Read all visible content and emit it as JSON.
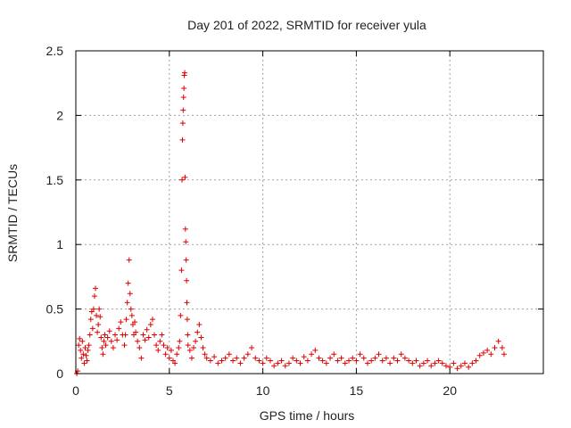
{
  "chart_data": {
    "type": "scatter",
    "title": "Day 201 of 2022, SRMTID for receiver yula",
    "xlabel": "GPS time / hours",
    "ylabel": "SRMTID / TECUs",
    "xlim": [
      0,
      25
    ],
    "ylim": [
      0,
      2.5
    ],
    "x_ticks": [
      0,
      5,
      10,
      15,
      20
    ],
    "x_tick_labels": [
      "0",
      "5",
      "10",
      "15",
      "20"
    ],
    "y_ticks": [
      0,
      0.5,
      1,
      1.5,
      2,
      2.5
    ],
    "y_tick_labels": [
      "0",
      "0.5",
      "1",
      "1.5",
      "2",
      "2.5"
    ],
    "grid": true,
    "marker": "+",
    "series": [
      {
        "name": "SRMTID",
        "color": "#e00000",
        "points": [
          [
            0.05,
            0.0
          ],
          [
            0.1,
            0.02
          ],
          [
            0.15,
            0.22
          ],
          [
            0.2,
            0.27
          ],
          [
            0.25,
            0.18
          ],
          [
            0.3,
            0.12
          ],
          [
            0.35,
            0.25
          ],
          [
            0.4,
            0.15
          ],
          [
            0.45,
            0.08
          ],
          [
            0.5,
            0.2
          ],
          [
            0.55,
            0.14
          ],
          [
            0.6,
            0.1
          ],
          [
            0.65,
            0.18
          ],
          [
            0.7,
            0.22
          ],
          [
            0.75,
            0.3
          ],
          [
            0.8,
            0.42
          ],
          [
            0.85,
            0.48
          ],
          [
            0.9,
            0.35
          ],
          [
            0.95,
            0.5
          ],
          [
            1.0,
            0.6
          ],
          [
            1.05,
            0.66
          ],
          [
            1.1,
            0.45
          ],
          [
            1.15,
            0.32
          ],
          [
            1.2,
            0.38
          ],
          [
            1.25,
            0.5
          ],
          [
            1.3,
            0.44
          ],
          [
            1.35,
            0.28
          ],
          [
            1.4,
            0.2
          ],
          [
            1.45,
            0.15
          ],
          [
            1.5,
            0.25
          ],
          [
            1.55,
            0.3
          ],
          [
            1.6,
            0.22
          ],
          [
            1.7,
            0.28
          ],
          [
            1.8,
            0.33
          ],
          [
            1.9,
            0.25
          ],
          [
            2.0,
            0.2
          ],
          [
            2.1,
            0.3
          ],
          [
            2.2,
            0.26
          ],
          [
            2.3,
            0.35
          ],
          [
            2.4,
            0.4
          ],
          [
            2.5,
            0.3
          ],
          [
            2.6,
            0.22
          ],
          [
            2.65,
            0.3
          ],
          [
            2.7,
            0.42
          ],
          [
            2.75,
            0.55
          ],
          [
            2.8,
            0.7
          ],
          [
            2.85,
            0.88
          ],
          [
            2.9,
            0.62
          ],
          [
            2.95,
            0.5
          ],
          [
            3.0,
            0.45
          ],
          [
            3.05,
            0.38
          ],
          [
            3.1,
            0.3
          ],
          [
            3.15,
            0.4
          ],
          [
            3.2,
            0.32
          ],
          [
            3.3,
            0.25
          ],
          [
            3.4,
            0.2
          ],
          [
            3.5,
            0.12
          ],
          [
            3.6,
            0.3
          ],
          [
            3.7,
            0.26
          ],
          [
            3.8,
            0.34
          ],
          [
            3.9,
            0.28
          ],
          [
            4.0,
            0.38
          ],
          [
            4.1,
            0.42
          ],
          [
            4.2,
            0.3
          ],
          [
            4.3,
            0.22
          ],
          [
            4.4,
            0.18
          ],
          [
            4.5,
            0.25
          ],
          [
            4.6,
            0.3
          ],
          [
            4.7,
            0.22
          ],
          [
            4.8,
            0.15
          ],
          [
            4.9,
            0.2
          ],
          [
            5.0,
            0.12
          ],
          [
            5.1,
            0.18
          ],
          [
            5.2,
            0.1
          ],
          [
            5.3,
            0.08
          ],
          [
            5.4,
            0.15
          ],
          [
            5.5,
            0.2
          ],
          [
            5.55,
            0.25
          ],
          [
            5.6,
            0.45
          ],
          [
            5.65,
            0.8
          ],
          [
            5.68,
            1.5
          ],
          [
            5.7,
            1.81
          ],
          [
            5.72,
            1.94
          ],
          [
            5.74,
            2.04
          ],
          [
            5.76,
            2.14
          ],
          [
            5.78,
            2.21
          ],
          [
            5.8,
            2.31
          ],
          [
            5.82,
            2.33
          ],
          [
            5.84,
            1.52
          ],
          [
            5.86,
            1.12
          ],
          [
            5.88,
            1.02
          ],
          [
            5.9,
            0.88
          ],
          [
            5.92,
            0.72
          ],
          [
            5.94,
            0.55
          ],
          [
            5.96,
            0.42
          ],
          [
            5.98,
            0.3
          ],
          [
            6.0,
            0.22
          ],
          [
            6.1,
            0.18
          ],
          [
            6.2,
            0.12
          ],
          [
            6.3,
            0.2
          ],
          [
            6.4,
            0.25
          ],
          [
            6.5,
            0.32
          ],
          [
            6.6,
            0.38
          ],
          [
            6.7,
            0.28
          ],
          [
            6.8,
            0.2
          ],
          [
            6.9,
            0.15
          ],
          [
            7.0,
            0.12
          ],
          [
            7.2,
            0.1
          ],
          [
            7.4,
            0.13
          ],
          [
            7.6,
            0.08
          ],
          [
            7.8,
            0.1
          ],
          [
            8.0,
            0.12
          ],
          [
            8.2,
            0.15
          ],
          [
            8.4,
            0.1
          ],
          [
            8.6,
            0.12
          ],
          [
            8.8,
            0.08
          ],
          [
            9.0,
            0.12
          ],
          [
            9.2,
            0.15
          ],
          [
            9.4,
            0.2
          ],
          [
            9.6,
            0.12
          ],
          [
            9.8,
            0.1
          ],
          [
            10.0,
            0.08
          ],
          [
            10.2,
            0.12
          ],
          [
            10.4,
            0.1
          ],
          [
            10.6,
            0.06
          ],
          [
            10.8,
            0.08
          ],
          [
            11.0,
            0.1
          ],
          [
            11.2,
            0.06
          ],
          [
            11.4,
            0.08
          ],
          [
            11.6,
            0.12
          ],
          [
            11.8,
            0.1
          ],
          [
            12.0,
            0.08
          ],
          [
            12.2,
            0.13
          ],
          [
            12.4,
            0.1
          ],
          [
            12.6,
            0.15
          ],
          [
            12.8,
            0.18
          ],
          [
            13.0,
            0.12
          ],
          [
            13.2,
            0.1
          ],
          [
            13.4,
            0.08
          ],
          [
            13.6,
            0.12
          ],
          [
            13.8,
            0.15
          ],
          [
            14.0,
            0.1
          ],
          [
            14.2,
            0.12
          ],
          [
            14.4,
            0.08
          ],
          [
            14.6,
            0.1
          ],
          [
            14.8,
            0.12
          ],
          [
            15.0,
            0.1
          ],
          [
            15.2,
            0.15
          ],
          [
            15.4,
            0.12
          ],
          [
            15.6,
            0.08
          ],
          [
            15.8,
            0.1
          ],
          [
            16.0,
            0.12
          ],
          [
            16.2,
            0.15
          ],
          [
            16.4,
            0.1
          ],
          [
            16.6,
            0.12
          ],
          [
            16.8,
            0.08
          ],
          [
            17.0,
            0.12
          ],
          [
            17.2,
            0.1
          ],
          [
            17.4,
            0.15
          ],
          [
            17.6,
            0.12
          ],
          [
            17.8,
            0.1
          ],
          [
            18.0,
            0.08
          ],
          [
            18.2,
            0.1
          ],
          [
            18.4,
            0.06
          ],
          [
            18.6,
            0.08
          ],
          [
            18.8,
            0.1
          ],
          [
            19.0,
            0.06
          ],
          [
            19.2,
            0.08
          ],
          [
            19.4,
            0.1
          ],
          [
            19.6,
            0.08
          ],
          [
            19.8,
            0.06
          ],
          [
            20.0,
            0.05
          ],
          [
            20.2,
            0.08
          ],
          [
            20.4,
            0.04
          ],
          [
            20.6,
            0.06
          ],
          [
            20.8,
            0.08
          ],
          [
            21.0,
            0.05
          ],
          [
            21.2,
            0.08
          ],
          [
            21.4,
            0.1
          ],
          [
            21.6,
            0.14
          ],
          [
            21.8,
            0.16
          ],
          [
            22.0,
            0.18
          ],
          [
            22.2,
            0.15
          ],
          [
            22.4,
            0.2
          ],
          [
            22.6,
            0.25
          ],
          [
            22.8,
            0.2
          ],
          [
            22.9,
            0.15
          ]
        ]
      }
    ]
  }
}
